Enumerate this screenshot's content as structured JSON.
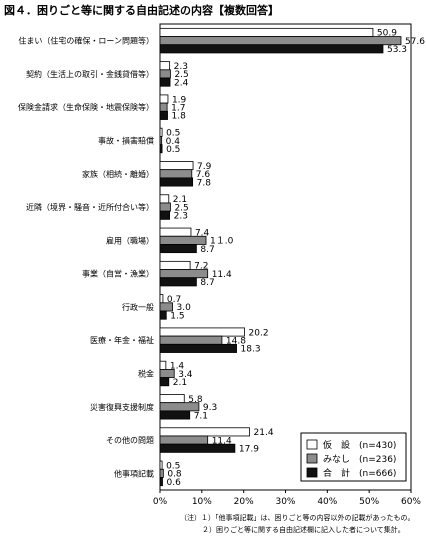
{
  "chart_data": {
    "type": "bar",
    "orientation": "horizontal",
    "title": "図４．困りごと等に関する自由記述の内容【複数回答】",
    "categories": [
      "住まい（住宅の確保・ローン問題等）",
      "契約（生活上の取引・金銭貸借等）",
      "保険金請求（生命保険・地震保険等）",
      "事故・損害賠償",
      "家族（相続・離婚）",
      "近隣（境界・騒音・近所付合い等）",
      "雇用（職場）",
      "事業（自営・漁業）",
      "行政一般",
      "医療・年金・福祉",
      "税金",
      "災害復興支援制度",
      "その他の問題",
      "他事項記載"
    ],
    "series": [
      {
        "name": "仮　設　(n=430)",
        "color": "#ffffff",
        "values": [
          50.9,
          2.3,
          1.9,
          0.5,
          7.9,
          2.1,
          7.4,
          7.2,
          0.7,
          20.2,
          1.4,
          5.8,
          21.4,
          0.5
        ],
        "labels": [
          "50.9",
          "2.3",
          "1.9",
          "0.5",
          "7.9",
          "2.1",
          "7.4",
          "7.2",
          "0.7",
          "20.2",
          "1.4",
          "5.8",
          "21.4",
          "0.5"
        ]
      },
      {
        "name": "みなし　(n=236)",
        "color": "#8c8c8c",
        "values": [
          57.6,
          2.5,
          1.7,
          0.4,
          7.6,
          2.5,
          11.0,
          11.4,
          3.0,
          14.8,
          3.4,
          9.3,
          11.4,
          0.8
        ],
        "labels": [
          "57.6",
          "2.5",
          "1.7",
          "0.4",
          "7.6",
          "2.5",
          "1１.0",
          "11.4",
          "3.0",
          "14.8",
          "3.4",
          "9.3",
          "11.4",
          "0.8"
        ]
      },
      {
        "name": "合　計　(n=666)",
        "color": "#111111",
        "values": [
          53.3,
          2.4,
          1.8,
          0.5,
          7.8,
          2.3,
          8.7,
          8.7,
          1.5,
          18.3,
          2.1,
          7.1,
          17.9,
          0.6
        ],
        "labels": [
          "53.3",
          "2.4",
          "1.8",
          "0.5",
          "7.8",
          "2.3",
          "8.7",
          "8.7",
          "1.5",
          "18.3",
          "2.1",
          "7.1",
          "17.9",
          "0.6"
        ]
      }
    ],
    "xlim": [
      0,
      60
    ],
    "xticks": [
      "0%",
      "10%",
      "20%",
      "30%",
      "40%",
      "50%",
      "60%"
    ],
    "grid": false,
    "legend_position": "bottom-right"
  },
  "notes": [
    "（注）１）「他事項記載」は、困りごと等の内容以外の記載があったもの。",
    "２）困りごと等に関する自由記述欄に記入した者について集計。"
  ]
}
